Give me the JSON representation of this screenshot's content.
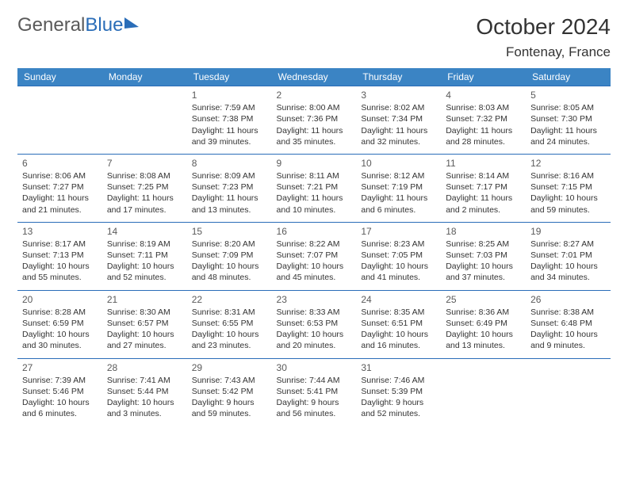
{
  "brand": {
    "part1": "General",
    "part2": "Blue"
  },
  "title": "October 2024",
  "location": "Fontenay, France",
  "colors": {
    "header_bg": "#3b84c4",
    "border": "#2a6db8",
    "text": "#333333",
    "logo_gray": "#5a5a5a"
  },
  "dow": [
    "Sunday",
    "Monday",
    "Tuesday",
    "Wednesday",
    "Thursday",
    "Friday",
    "Saturday"
  ],
  "weeks": [
    [
      null,
      null,
      {
        "n": "1",
        "sr": "Sunrise: 7:59 AM",
        "ss": "Sunset: 7:38 PM",
        "d1": "Daylight: 11 hours",
        "d2": "and 39 minutes."
      },
      {
        "n": "2",
        "sr": "Sunrise: 8:00 AM",
        "ss": "Sunset: 7:36 PM",
        "d1": "Daylight: 11 hours",
        "d2": "and 35 minutes."
      },
      {
        "n": "3",
        "sr": "Sunrise: 8:02 AM",
        "ss": "Sunset: 7:34 PM",
        "d1": "Daylight: 11 hours",
        "d2": "and 32 minutes."
      },
      {
        "n": "4",
        "sr": "Sunrise: 8:03 AM",
        "ss": "Sunset: 7:32 PM",
        "d1": "Daylight: 11 hours",
        "d2": "and 28 minutes."
      },
      {
        "n": "5",
        "sr": "Sunrise: 8:05 AM",
        "ss": "Sunset: 7:30 PM",
        "d1": "Daylight: 11 hours",
        "d2": "and 24 minutes."
      }
    ],
    [
      {
        "n": "6",
        "sr": "Sunrise: 8:06 AM",
        "ss": "Sunset: 7:27 PM",
        "d1": "Daylight: 11 hours",
        "d2": "and 21 minutes."
      },
      {
        "n": "7",
        "sr": "Sunrise: 8:08 AM",
        "ss": "Sunset: 7:25 PM",
        "d1": "Daylight: 11 hours",
        "d2": "and 17 minutes."
      },
      {
        "n": "8",
        "sr": "Sunrise: 8:09 AM",
        "ss": "Sunset: 7:23 PM",
        "d1": "Daylight: 11 hours",
        "d2": "and 13 minutes."
      },
      {
        "n": "9",
        "sr": "Sunrise: 8:11 AM",
        "ss": "Sunset: 7:21 PM",
        "d1": "Daylight: 11 hours",
        "d2": "and 10 minutes."
      },
      {
        "n": "10",
        "sr": "Sunrise: 8:12 AM",
        "ss": "Sunset: 7:19 PM",
        "d1": "Daylight: 11 hours",
        "d2": "and 6 minutes."
      },
      {
        "n": "11",
        "sr": "Sunrise: 8:14 AM",
        "ss": "Sunset: 7:17 PM",
        "d1": "Daylight: 11 hours",
        "d2": "and 2 minutes."
      },
      {
        "n": "12",
        "sr": "Sunrise: 8:16 AM",
        "ss": "Sunset: 7:15 PM",
        "d1": "Daylight: 10 hours",
        "d2": "and 59 minutes."
      }
    ],
    [
      {
        "n": "13",
        "sr": "Sunrise: 8:17 AM",
        "ss": "Sunset: 7:13 PM",
        "d1": "Daylight: 10 hours",
        "d2": "and 55 minutes."
      },
      {
        "n": "14",
        "sr": "Sunrise: 8:19 AM",
        "ss": "Sunset: 7:11 PM",
        "d1": "Daylight: 10 hours",
        "d2": "and 52 minutes."
      },
      {
        "n": "15",
        "sr": "Sunrise: 8:20 AM",
        "ss": "Sunset: 7:09 PM",
        "d1": "Daylight: 10 hours",
        "d2": "and 48 minutes."
      },
      {
        "n": "16",
        "sr": "Sunrise: 8:22 AM",
        "ss": "Sunset: 7:07 PM",
        "d1": "Daylight: 10 hours",
        "d2": "and 45 minutes."
      },
      {
        "n": "17",
        "sr": "Sunrise: 8:23 AM",
        "ss": "Sunset: 7:05 PM",
        "d1": "Daylight: 10 hours",
        "d2": "and 41 minutes."
      },
      {
        "n": "18",
        "sr": "Sunrise: 8:25 AM",
        "ss": "Sunset: 7:03 PM",
        "d1": "Daylight: 10 hours",
        "d2": "and 37 minutes."
      },
      {
        "n": "19",
        "sr": "Sunrise: 8:27 AM",
        "ss": "Sunset: 7:01 PM",
        "d1": "Daylight: 10 hours",
        "d2": "and 34 minutes."
      }
    ],
    [
      {
        "n": "20",
        "sr": "Sunrise: 8:28 AM",
        "ss": "Sunset: 6:59 PM",
        "d1": "Daylight: 10 hours",
        "d2": "and 30 minutes."
      },
      {
        "n": "21",
        "sr": "Sunrise: 8:30 AM",
        "ss": "Sunset: 6:57 PM",
        "d1": "Daylight: 10 hours",
        "d2": "and 27 minutes."
      },
      {
        "n": "22",
        "sr": "Sunrise: 8:31 AM",
        "ss": "Sunset: 6:55 PM",
        "d1": "Daylight: 10 hours",
        "d2": "and 23 minutes."
      },
      {
        "n": "23",
        "sr": "Sunrise: 8:33 AM",
        "ss": "Sunset: 6:53 PM",
        "d1": "Daylight: 10 hours",
        "d2": "and 20 minutes."
      },
      {
        "n": "24",
        "sr": "Sunrise: 8:35 AM",
        "ss": "Sunset: 6:51 PM",
        "d1": "Daylight: 10 hours",
        "d2": "and 16 minutes."
      },
      {
        "n": "25",
        "sr": "Sunrise: 8:36 AM",
        "ss": "Sunset: 6:49 PM",
        "d1": "Daylight: 10 hours",
        "d2": "and 13 minutes."
      },
      {
        "n": "26",
        "sr": "Sunrise: 8:38 AM",
        "ss": "Sunset: 6:48 PM",
        "d1": "Daylight: 10 hours",
        "d2": "and 9 minutes."
      }
    ],
    [
      {
        "n": "27",
        "sr": "Sunrise: 7:39 AM",
        "ss": "Sunset: 5:46 PM",
        "d1": "Daylight: 10 hours",
        "d2": "and 6 minutes."
      },
      {
        "n": "28",
        "sr": "Sunrise: 7:41 AM",
        "ss": "Sunset: 5:44 PM",
        "d1": "Daylight: 10 hours",
        "d2": "and 3 minutes."
      },
      {
        "n": "29",
        "sr": "Sunrise: 7:43 AM",
        "ss": "Sunset: 5:42 PM",
        "d1": "Daylight: 9 hours",
        "d2": "and 59 minutes."
      },
      {
        "n": "30",
        "sr": "Sunrise: 7:44 AM",
        "ss": "Sunset: 5:41 PM",
        "d1": "Daylight: 9 hours",
        "d2": "and 56 minutes."
      },
      {
        "n": "31",
        "sr": "Sunrise: 7:46 AM",
        "ss": "Sunset: 5:39 PM",
        "d1": "Daylight: 9 hours",
        "d2": "and 52 minutes."
      },
      null,
      null
    ]
  ]
}
